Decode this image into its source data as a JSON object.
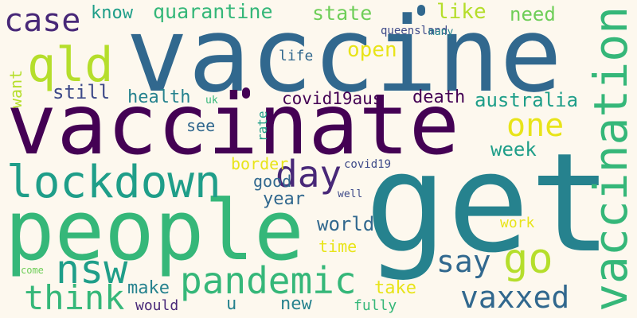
{
  "palette": {
    "background": "#fdf8ee",
    "dark_purple": "#440154",
    "purple": "#482878",
    "indigo": "#3e4a89",
    "blue": "#31688e",
    "slate_blue": "#26828e",
    "teal": "#1f9e89",
    "green": "#35b779",
    "light_green": "#6ece58",
    "lime": "#b5de2b",
    "yellow": "#e8e419"
  },
  "words": [
    "get",
    "vaccine",
    "vaccinate",
    "people",
    "vaccination",
    "lockdown",
    "qld",
    "pandemic",
    "nsw",
    "think",
    "go",
    "day",
    "say",
    "vaxxed",
    "case",
    "one",
    "like",
    "state",
    "quarantine",
    "need",
    "know",
    "open",
    "still",
    "australia",
    "health",
    "covid19aus",
    "death",
    "week",
    "life",
    "border",
    "see",
    "year",
    "world",
    "time",
    "good",
    "make",
    "u",
    "new",
    "take",
    "would",
    "fully",
    "work",
    "covid19",
    "well",
    "queensland",
    "many",
    "uk",
    "come",
    "want",
    "rate"
  ]
}
